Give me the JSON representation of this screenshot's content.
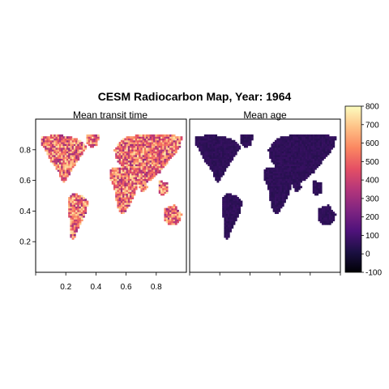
{
  "figure": {
    "title": "CESM Radiocarbon Map,  Year:  1964"
  },
  "panels": [
    {
      "strip_label": "Mean transit time",
      "field": "transit",
      "mean_value": 520
    },
    {
      "strip_label": "Mean age",
      "field": "age",
      "mean_value": 55
    }
  ],
  "axes": {
    "x_tick_labels": [
      "0.2",
      "0.4",
      "0.6",
      "0.8"
    ],
    "x_ticks": [
      0.2,
      0.4,
      0.6,
      0.8
    ],
    "y_tick_labels": [
      "0.2",
      "0.4",
      "0.6",
      "0.8"
    ],
    "y_ticks": [
      0.2,
      0.4,
      0.6,
      0.8
    ],
    "xlim": [
      0,
      1
    ],
    "ylim": [
      0,
      1
    ]
  },
  "colorbar": {
    "palette": "magma",
    "range": [
      -100,
      800
    ],
    "tick_values": [
      800,
      700,
      600,
      500,
      400,
      300,
      200,
      100,
      0,
      -100
    ],
    "tick_labels": [
      "800",
      "700",
      "600",
      "500",
      "400",
      "300",
      "200",
      "100",
      "0",
      "-100"
    ],
    "colors": [
      "#000004",
      "#1c1044",
      "#4f127b",
      "#812581",
      "#b5367a",
      "#e55064",
      "#fb8761",
      "#fec287",
      "#fcfdbf"
    ]
  }
}
